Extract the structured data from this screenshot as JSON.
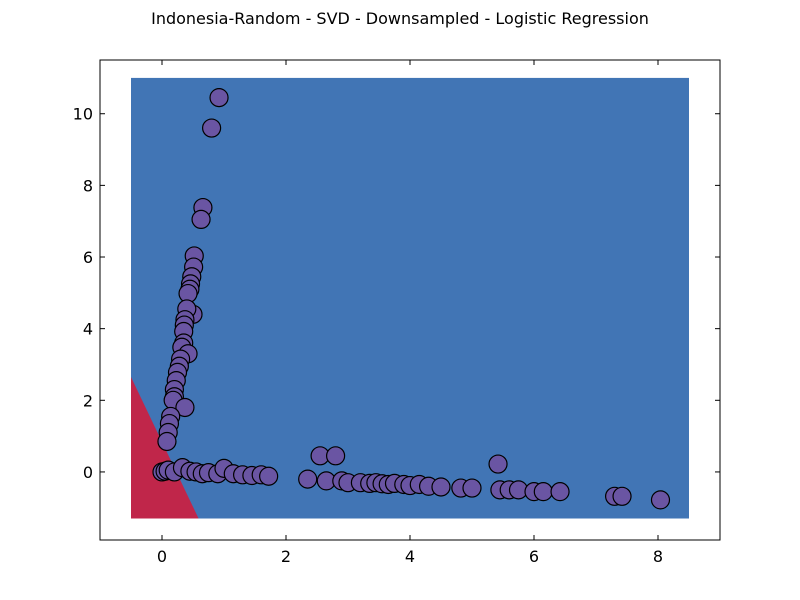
{
  "chart_data": {
    "type": "scatter",
    "title": "Indonesia-Random - SVD - Downsampled - Logistic Regression",
    "xlabel": "",
    "ylabel": "",
    "xlim": [
      -1,
      9
    ],
    "ylim": [
      -1.9,
      11.5
    ],
    "x_ticks": [
      0,
      2,
      4,
      6,
      8
    ],
    "y_ticks": [
      0,
      2,
      4,
      6,
      8,
      10
    ],
    "grid": false,
    "decision_region": {
      "x_range": [
        -0.5,
        8.5
      ],
      "y_range": [
        -1.3,
        11
      ],
      "boundary_points": [
        [
          -0.5,
          2.65
        ],
        [
          0.59,
          -1.3
        ]
      ],
      "colors": {
        "class_0": "#c0264a",
        "class_1": "#4175b5"
      }
    },
    "point_color": "#6a55a3",
    "points": [
      [
        0.92,
        10.45
      ],
      [
        0.8,
        9.6
      ],
      [
        0.66,
        7.38
      ],
      [
        0.63,
        7.05
      ],
      [
        0.52,
        6.03
      ],
      [
        0.51,
        5.72
      ],
      [
        0.48,
        5.45
      ],
      [
        0.46,
        5.25
      ],
      [
        0.45,
        5.1
      ],
      [
        0.42,
        4.98
      ],
      [
        0.5,
        4.4
      ],
      [
        0.4,
        4.55
      ],
      [
        0.37,
        4.25
      ],
      [
        0.36,
        4.1
      ],
      [
        0.35,
        3.92
      ],
      [
        0.35,
        3.6
      ],
      [
        0.32,
        3.48
      ],
      [
        0.42,
        3.3
      ],
      [
        0.3,
        3.15
      ],
      [
        0.28,
        2.95
      ],
      [
        0.25,
        2.78
      ],
      [
        0.23,
        2.55
      ],
      [
        0.2,
        2.3
      ],
      [
        0.2,
        2.1
      ],
      [
        0.18,
        2.0
      ],
      [
        0.37,
        1.8
      ],
      [
        0.14,
        1.55
      ],
      [
        0.12,
        1.35
      ],
      [
        0.1,
        1.1
      ],
      [
        0.08,
        0.85
      ],
      [
        0.0,
        0.0
      ],
      [
        0.05,
        0.02
      ],
      [
        0.1,
        0.05
      ],
      [
        0.2,
        0.0
      ],
      [
        0.33,
        0.12
      ],
      [
        0.45,
        0.02
      ],
      [
        0.55,
        0.0
      ],
      [
        0.65,
        -0.05
      ],
      [
        0.75,
        -0.02
      ],
      [
        0.9,
        -0.05
      ],
      [
        1.0,
        0.1
      ],
      [
        1.15,
        -0.05
      ],
      [
        1.3,
        -0.08
      ],
      [
        1.45,
        -0.1
      ],
      [
        1.6,
        -0.08
      ],
      [
        1.72,
        -0.12
      ],
      [
        2.35,
        -0.2
      ],
      [
        2.55,
        0.45
      ],
      [
        2.65,
        -0.25
      ],
      [
        2.8,
        0.45
      ],
      [
        2.9,
        -0.25
      ],
      [
        3.0,
        -0.3
      ],
      [
        3.2,
        -0.3
      ],
      [
        3.35,
        -0.32
      ],
      [
        3.45,
        -0.3
      ],
      [
        3.55,
        -0.33
      ],
      [
        3.65,
        -0.35
      ],
      [
        3.75,
        -0.32
      ],
      [
        3.9,
        -0.35
      ],
      [
        4.0,
        -0.38
      ],
      [
        4.15,
        -0.35
      ],
      [
        4.3,
        -0.4
      ],
      [
        4.5,
        -0.42
      ],
      [
        4.82,
        -0.45
      ],
      [
        5.0,
        -0.45
      ],
      [
        5.42,
        0.22
      ],
      [
        5.45,
        -0.5
      ],
      [
        5.6,
        -0.5
      ],
      [
        5.75,
        -0.5
      ],
      [
        6.0,
        -0.55
      ],
      [
        6.15,
        -0.55
      ],
      [
        6.42,
        -0.55
      ],
      [
        7.3,
        -0.68
      ],
      [
        7.42,
        -0.68
      ],
      [
        8.04,
        -0.78
      ]
    ]
  }
}
